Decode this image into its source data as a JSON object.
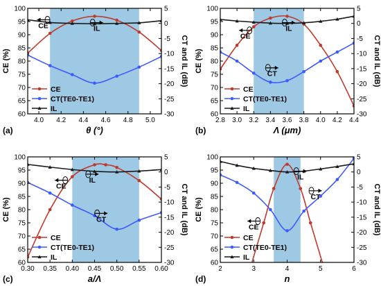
{
  "colors": {
    "ce": "#c0392b",
    "ct": "#3d5afe",
    "il": "#1a1a1a",
    "band": "#9ec9e4"
  },
  "chart_data": [
    {
      "type": "line",
      "panel_label": "(a)",
      "xlabel": "θ (°)",
      "ylabel_left": "CE (%)",
      "ylabel_right": "CT and IL (dB)",
      "xlim": [
        3.9,
        5.1
      ],
      "x_ticks": [
        "4.0",
        "4.2",
        "4.4",
        "4.6",
        "4.8",
        "5.0"
      ],
      "x_tick_values": [
        4.0,
        4.2,
        4.4,
        4.6,
        4.8,
        5.0
      ],
      "ylim_left": [
        60,
        100
      ],
      "y_ticks_left": [
        "60",
        "65",
        "70",
        "75",
        "80",
        "85",
        "90",
        "95",
        "100"
      ],
      "ylim_right": [
        -30,
        5
      ],
      "y_ticks_right": [
        "-30",
        "-25",
        "-20",
        "-15",
        "-10",
        "-5",
        "0",
        "5"
      ],
      "shaded_band": [
        4.1,
        4.9
      ],
      "series": [
        {
          "name": "CE",
          "axis": "left",
          "x": [
            3.9,
            4.1,
            4.3,
            4.5,
            4.7,
            4.9,
            5.1
          ],
          "values": [
            83,
            90.5,
            95.2,
            97,
            95.5,
            91,
            84
          ]
        },
        {
          "name": "CT(TE0-TE1)",
          "axis": "right",
          "x": [
            3.9,
            4.1,
            4.3,
            4.5,
            4.7,
            4.9,
            5.1
          ],
          "values": [
            -10.5,
            -14,
            -17,
            -19.8,
            -17.5,
            -14.5,
            -11
          ]
        },
        {
          "name": "IL",
          "axis": "right",
          "x": [
            3.9,
            4.1,
            4.3,
            4.5,
            4.7,
            4.9,
            5.1
          ],
          "values": [
            1.2,
            0.3,
            0,
            -0.1,
            0,
            0.2,
            0.9
          ]
        }
      ],
      "annotations": [
        {
          "text": "CE",
          "x": 4.04,
          "y": 92.5,
          "axis": "left",
          "arrow": "left"
        },
        {
          "text": "IL",
          "x": 4.52,
          "y": -2.5,
          "axis": "right",
          "arrow": "right"
        }
      ]
    },
    {
      "type": "line",
      "panel_label": "(b)",
      "xlabel": "Λ (μm)",
      "ylabel_left": "CE (%)",
      "ylabel_right": "CT and IL (dB)",
      "xlim": [
        2.8,
        4.4
      ],
      "x_ticks": [
        "2.8",
        "3.0",
        "3.2",
        "3.4",
        "3.6",
        "3.8",
        "4.0",
        "4.2",
        "4.4"
      ],
      "x_tick_values": [
        2.8,
        3.0,
        3.2,
        3.4,
        3.6,
        3.8,
        4.0,
        4.2,
        4.4
      ],
      "ylim_left": [
        60,
        100
      ],
      "y_ticks_left": [
        "60",
        "65",
        "70",
        "75",
        "80",
        "85",
        "90",
        "95",
        "100"
      ],
      "ylim_right": [
        -30,
        5
      ],
      "y_ticks_right": [
        "-30",
        "-25",
        "-20",
        "-15",
        "-10",
        "-5",
        "0",
        "5"
      ],
      "shaded_band": [
        3.2,
        3.8
      ],
      "series": [
        {
          "name": "CE",
          "axis": "left",
          "x": [
            2.8,
            3.0,
            3.2,
            3.4,
            3.6,
            3.8,
            4.0,
            4.2,
            4.4
          ],
          "values": [
            77,
            86,
            93,
            96.3,
            97,
            94,
            86,
            76,
            63
          ]
        },
        {
          "name": "CT(TE0-TE1)",
          "axis": "right",
          "x": [
            2.8,
            3.0,
            3.2,
            3.4,
            3.6,
            3.8,
            4.0,
            4.2,
            4.4
          ],
          "values": [
            -9.5,
            -12.5,
            -16.5,
            -19.5,
            -19,
            -16,
            -12.5,
            -9.5,
            -6.5
          ]
        },
        {
          "name": "IL",
          "axis": "right",
          "x": [
            2.8,
            3.0,
            3.2,
            3.4,
            3.6,
            3.8,
            4.0,
            4.2,
            4.4
          ],
          "values": [
            1.3,
            0.8,
            0.4,
            0.1,
            0,
            0.2,
            0.7,
            1.4,
            2.4
          ]
        }
      ],
      "annotations": [
        {
          "text": "CE",
          "x": 3.1,
          "y": 88.5,
          "axis": "left",
          "arrow": "left"
        },
        {
          "text": "CT",
          "x": 3.42,
          "y": -17.5,
          "axis": "right",
          "arrow": "right"
        },
        {
          "text": "IL",
          "x": 3.62,
          "y": -2.5,
          "axis": "right",
          "arrow": "right"
        }
      ]
    },
    {
      "type": "line",
      "panel_label": "(c)",
      "xlabel": "a/Λ",
      "ylabel_left": "CE (%)",
      "ylabel_right": "CT and IL (dB)",
      "xlim": [
        0.3,
        0.6
      ],
      "x_ticks": [
        "0.30",
        "0.35",
        "0.40",
        "0.45",
        "0.50",
        "0.55",
        "0.60"
      ],
      "x_tick_values": [
        0.3,
        0.35,
        0.4,
        0.45,
        0.5,
        0.55,
        0.6
      ],
      "ylim_left": [
        60,
        100
      ],
      "y_ticks_left": [
        "60",
        "65",
        "70",
        "75",
        "80",
        "85",
        "90",
        "95",
        "100"
      ],
      "ylim_right": [
        -30,
        5
      ],
      "y_ticks_right": [
        "-30",
        "-25",
        "-20",
        "-15",
        "-10",
        "-5",
        "0",
        "5"
      ],
      "shaded_band": [
        0.4,
        0.55
      ],
      "series": [
        {
          "name": "CE",
          "axis": "left",
          "x": [
            0.3,
            0.35,
            0.4,
            0.45,
            0.475,
            0.5,
            0.55,
            0.6
          ],
          "values": [
            62,
            80,
            92.5,
            97,
            97,
            96,
            91,
            84
          ]
        },
        {
          "name": "CT(TE0-TE1)",
          "axis": "right",
          "x": [
            0.3,
            0.35,
            0.4,
            0.45,
            0.5,
            0.55,
            0.6
          ],
          "values": [
            -3.5,
            -7,
            -11,
            -14.5,
            -19,
            -16,
            -13.5
          ]
        },
        {
          "name": "IL",
          "axis": "right",
          "x": [
            0.3,
            0.35,
            0.4,
            0.45,
            0.5,
            0.55,
            0.6
          ],
          "values": [
            2.5,
            1.6,
            0.8,
            0.2,
            0,
            0.3,
            0.8
          ]
        }
      ],
      "annotations": [
        {
          "text": "CE",
          "x": 0.375,
          "y": 88,
          "axis": "left",
          "arrow": "left"
        },
        {
          "text": "IL",
          "x": 0.445,
          "y": -3.5,
          "axis": "right",
          "arrow": "right"
        },
        {
          "text": "CT",
          "x": 0.465,
          "y": -16.5,
          "axis": "right",
          "arrow": "right"
        }
      ]
    },
    {
      "type": "line",
      "panel_label": "(d)",
      "xlabel": "n",
      "ylabel_left": "CE (%)",
      "ylabel_right": "CT and IL (dB)",
      "xlim": [
        2,
        6
      ],
      "x_ticks": [
        "2",
        "3",
        "4",
        "5",
        "6"
      ],
      "x_tick_values": [
        2,
        3,
        4,
        5,
        6
      ],
      "ylim_left": [
        60,
        100
      ],
      "y_ticks_left": [
        "60",
        "65",
        "70",
        "75",
        "80",
        "85",
        "90",
        "95",
        "100"
      ],
      "ylim_right": [
        -30,
        5
      ],
      "y_ticks_right": [
        "-30",
        "-25",
        "-20",
        "-15",
        "-10",
        "-5",
        "0",
        "5"
      ],
      "shaded_band": [
        3.6,
        4.4
      ],
      "series": [
        {
          "name": "CE",
          "axis": "left",
          "x": [
            2.9,
            3.3,
            3.6,
            4.0,
            4.4,
            4.7,
            5.1
          ],
          "values": [
            58,
            75,
            88,
            97.2,
            88,
            75,
            58
          ]
        },
        {
          "name": "CT(TE0-TE1)",
          "axis": "right",
          "x": [
            2,
            2.5,
            3,
            3.5,
            4,
            4.5,
            5,
            5.5,
            6
          ],
          "values": [
            -1,
            -3.5,
            -7,
            -12.5,
            -19.5,
            -13,
            -8,
            -2.5,
            4.5
          ]
        },
        {
          "name": "IL",
          "axis": "right",
          "x": [
            2,
            2.5,
            3,
            3.5,
            4,
            4.5,
            5,
            5.5,
            6
          ],
          "values": [
            3.5,
            2.2,
            1.2,
            0.5,
            0,
            0.3,
            1,
            1.8,
            2.7
          ]
        }
      ],
      "annotations": [
        {
          "text": "CE",
          "x": 3.0,
          "y": 72.5,
          "axis": "left",
          "arrow": "left"
        },
        {
          "text": "IL",
          "x": 4.4,
          "y": -2.5,
          "axis": "right",
          "arrow": "right"
        },
        {
          "text": "CT",
          "x": 4.85,
          "y": -9,
          "axis": "right",
          "arrow": "right"
        }
      ]
    }
  ]
}
